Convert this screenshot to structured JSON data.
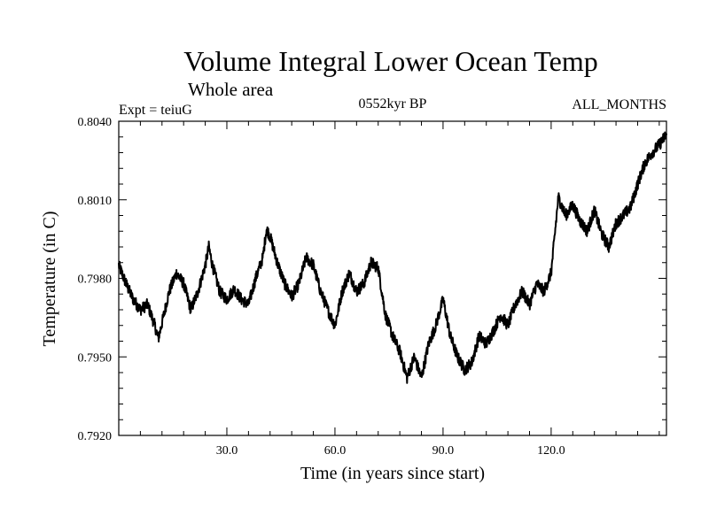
{
  "chart_data": {
    "type": "line",
    "title": "Volume Integral Lower Ocean Temp",
    "subtitle": "Whole area",
    "left_note": "Expt = teiuG",
    "center_note": "0552kyr BP",
    "right_note": "ALL_MONTHS",
    "xlabel": "Time (in years since start)",
    "ylabel": "Temperature (in C)",
    "xlim": [
      0,
      152
    ],
    "ylim": [
      0.792,
      0.804
    ],
    "x_ticks": [
      30,
      60,
      90,
      120
    ],
    "x_tick_labels": [
      "30.0",
      "60.0",
      "90.0",
      "120.0"
    ],
    "y_ticks": [
      0.792,
      0.795,
      0.798,
      0.801,
      0.804
    ],
    "y_tick_labels": [
      "0.7920",
      "0.7950",
      "0.7980",
      "0.8010",
      "0.8040"
    ],
    "grid": false,
    "series": [
      {
        "name": "Volume Integral Lower Ocean Temp",
        "x": [
          0,
          2,
          4,
          6,
          8,
          10,
          11,
          12,
          14,
          16,
          18,
          20,
          22,
          24,
          25,
          26,
          28,
          30,
          32,
          34,
          36,
          38,
          40,
          41,
          42,
          44,
          46,
          48,
          50,
          52,
          54,
          56,
          58,
          60,
          62,
          64,
          66,
          68,
          70,
          72,
          74,
          76,
          78,
          80,
          82,
          84,
          86,
          88,
          90,
          92,
          94,
          96,
          98,
          100,
          102,
          104,
          106,
          108,
          110,
          112,
          114,
          116,
          118,
          120,
          122,
          124,
          126,
          128,
          130,
          132,
          134,
          136,
          138,
          140,
          142,
          144,
          146,
          148,
          150,
          152
        ],
        "values": [
          0.7985,
          0.7978,
          0.7972,
          0.7968,
          0.797,
          0.7962,
          0.7957,
          0.7963,
          0.7975,
          0.7982,
          0.7978,
          0.7968,
          0.7975,
          0.7985,
          0.7992,
          0.7985,
          0.7975,
          0.7972,
          0.7976,
          0.7972,
          0.797,
          0.798,
          0.7988,
          0.7999,
          0.7996,
          0.7986,
          0.7978,
          0.7973,
          0.7978,
          0.7988,
          0.7985,
          0.7975,
          0.7968,
          0.7962,
          0.7975,
          0.7982,
          0.7975,
          0.7978,
          0.7986,
          0.7984,
          0.7966,
          0.7958,
          0.7952,
          0.7942,
          0.795,
          0.7942,
          0.7955,
          0.7962,
          0.7972,
          0.7958,
          0.795,
          0.7945,
          0.7948,
          0.7958,
          0.7955,
          0.796,
          0.7966,
          0.7962,
          0.797,
          0.7975,
          0.797,
          0.7978,
          0.7975,
          0.7982,
          0.8011,
          0.8004,
          0.8008,
          0.8002,
          0.7998,
          0.8006,
          0.7997,
          0.7992,
          0.8001,
          0.8004,
          0.8007,
          0.8016,
          0.8024,
          0.8028,
          0.8031,
          0.8035
        ]
      }
    ]
  }
}
